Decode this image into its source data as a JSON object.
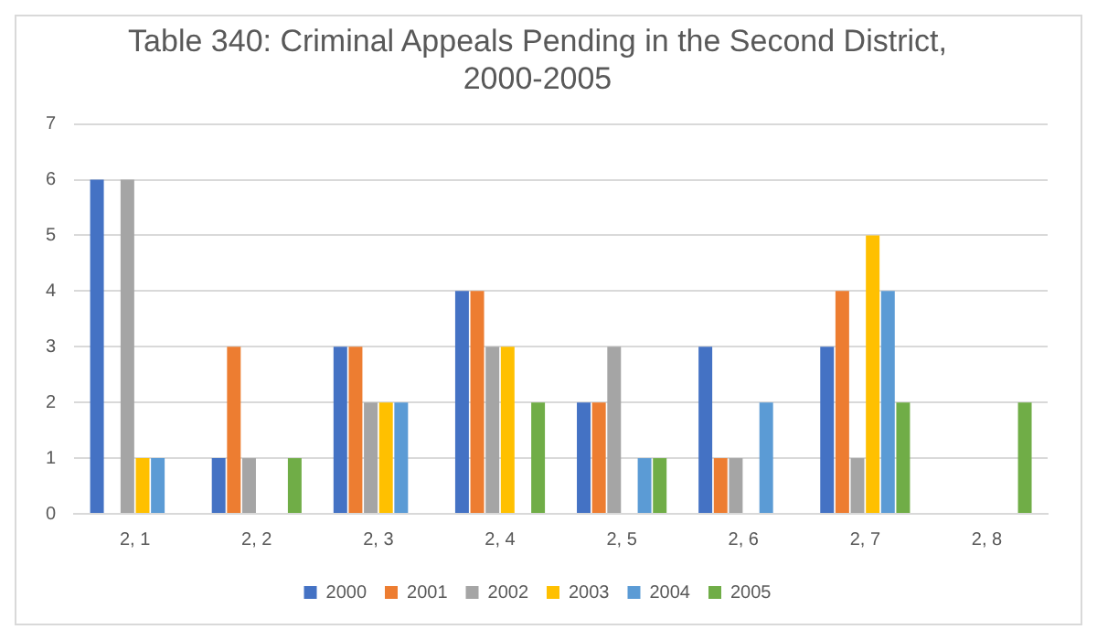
{
  "chart_data": {
    "type": "bar",
    "title": "Table 340: Criminal Appeals Pending in the Second District, 2000-2005",
    "categories": [
      "2, 1",
      "2, 2",
      "2, 3",
      "2, 4",
      "2, 5",
      "2, 6",
      "2, 7",
      "2, 8"
    ],
    "series": [
      {
        "name": "2000",
        "color": "#4472c4",
        "values": [
          6,
          1,
          3,
          4,
          2,
          3,
          3,
          null
        ]
      },
      {
        "name": "2001",
        "color": "#ed7d31",
        "values": [
          null,
          3,
          3,
          4,
          2,
          1,
          4,
          null
        ]
      },
      {
        "name": "2002",
        "color": "#a5a5a5",
        "values": [
          6,
          1,
          2,
          3,
          3,
          1,
          1,
          null
        ]
      },
      {
        "name": "2003",
        "color": "#ffc000",
        "values": [
          1,
          null,
          2,
          3,
          null,
          null,
          5,
          null
        ]
      },
      {
        "name": "2004",
        "color": "#5b9bd5",
        "values": [
          1,
          null,
          2,
          null,
          1,
          2,
          4,
          null
        ]
      },
      {
        "name": "2005",
        "color": "#70ad47",
        "values": [
          null,
          1,
          null,
          2,
          1,
          null,
          2,
          2
        ]
      }
    ],
    "ylim": [
      0,
      7
    ],
    "yticks": [
      0,
      1,
      2,
      3,
      4,
      5,
      6,
      7
    ],
    "grid": "y",
    "legend": "bottom"
  }
}
